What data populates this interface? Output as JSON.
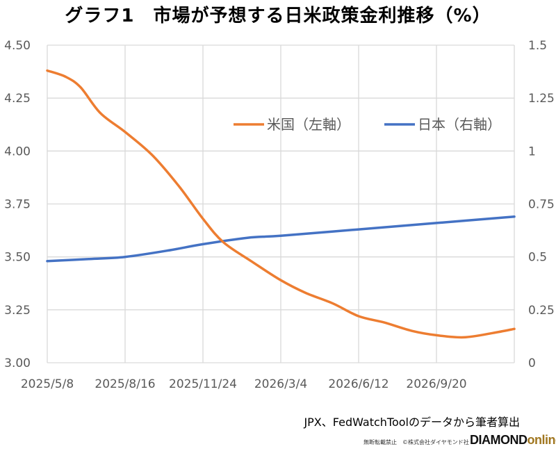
{
  "title": "グラフ1　市場が予想する日米政策金利推移（%）",
  "source": "JPX、FedWatchToolのデータから筆者算出",
  "copyright": "無断転載禁止　©株式会社ダイヤモンド社",
  "brand": {
    "part1": "DIAMOND",
    "part2": "online"
  },
  "chart_data": {
    "type": "line",
    "title": "グラフ1　市場が予想する日米政策金利推移（%）",
    "x_tick_labels": [
      "2025/5/8",
      "2025/8/16",
      "2025/11/24",
      "2026/3/4",
      "2026/6/12",
      "2026/9/20"
    ],
    "x_range": [
      "2025/5/8",
      "2026/12/29"
    ],
    "y_left": {
      "min": 3.0,
      "max": 4.5,
      "ticks": [
        "3.00",
        "3.25",
        "3.50",
        "3.75",
        "4.00",
        "4.25",
        "4.50"
      ]
    },
    "y_right": {
      "min": 0,
      "max": 1.5,
      "ticks": [
        "0",
        "0.25",
        "0.5",
        "0.75",
        "1",
        "1.25",
        "1.5"
      ]
    },
    "grid": true,
    "legend_position": "top-right",
    "series": [
      {
        "name": "米国（左軸）",
        "axis": "left",
        "color": "#ED7D31",
        "points": [
          [
            "2025/5/8",
            4.38
          ],
          [
            "2025/6/1",
            4.35
          ],
          [
            "2025/6/20",
            4.3
          ],
          [
            "2025/7/15",
            4.18
          ],
          [
            "2025/8/16",
            4.09
          ],
          [
            "2025/9/20",
            3.98
          ],
          [
            "2025/10/25",
            3.83
          ],
          [
            "2025/11/24",
            3.68
          ],
          [
            "2025/12/20",
            3.57
          ],
          [
            "2026/1/25",
            3.48
          ],
          [
            "2026/3/4",
            3.39
          ],
          [
            "2026/4/5",
            3.33
          ],
          [
            "2026/5/10",
            3.28
          ],
          [
            "2026/6/12",
            3.22
          ],
          [
            "2026/7/15",
            3.19
          ],
          [
            "2026/8/20",
            3.15
          ],
          [
            "2026/9/20",
            3.13
          ],
          [
            "2026/10/25",
            3.12
          ],
          [
            "2026/12/1",
            3.14
          ],
          [
            "2026/12/29",
            3.16
          ]
        ]
      },
      {
        "name": "日本（右軸）",
        "axis": "right",
        "color": "#4472C4",
        "points": [
          [
            "2025/5/8",
            0.48
          ],
          [
            "2025/7/1",
            0.49
          ],
          [
            "2025/8/16",
            0.5
          ],
          [
            "2025/10/10",
            0.53
          ],
          [
            "2025/11/24",
            0.56
          ],
          [
            "2026/1/20",
            0.59
          ],
          [
            "2026/3/4",
            0.6
          ],
          [
            "2026/6/12",
            0.63
          ],
          [
            "2026/9/20",
            0.66
          ],
          [
            "2026/12/29",
            0.69
          ]
        ]
      }
    ]
  }
}
